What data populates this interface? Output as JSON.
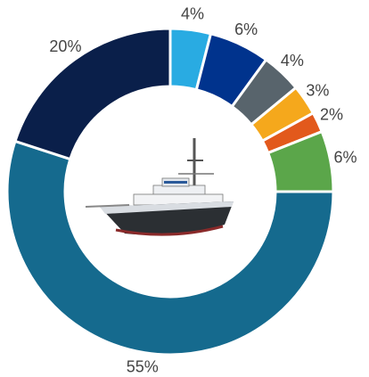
{
  "chart_data": {
    "type": "donut",
    "values": [
      4,
      6,
      4,
      3,
      2,
      6,
      55,
      20
    ],
    "value_labels": [
      "4%",
      "6%",
      "4%",
      "3%",
      "2%",
      "6%",
      "55%",
      "20%"
    ],
    "colors": [
      "#29abe2",
      "#00338d",
      "#58646c",
      "#f5a81c",
      "#e2591c",
      "#5ba64a",
      "#156a8e",
      "#0a1f4a"
    ]
  }
}
